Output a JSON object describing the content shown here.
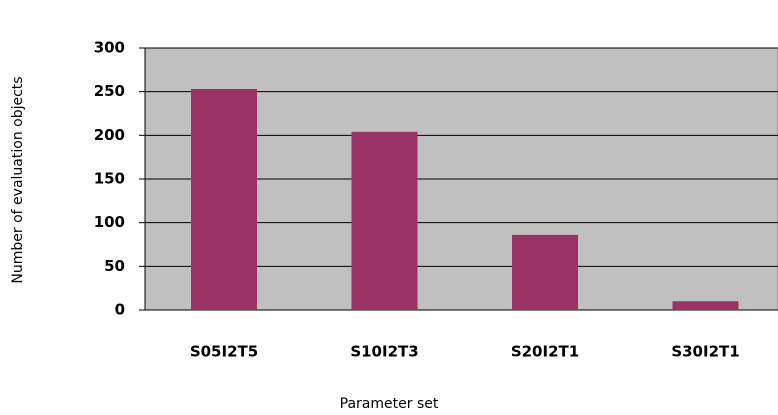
{
  "chart_data": {
    "type": "bar",
    "categories": [
      "S05I2T5",
      "S10I2T3",
      "S20I2T1",
      "S30I2T1"
    ],
    "values": [
      253,
      204,
      86,
      10
    ],
    "color": "#993366",
    "xlabel": "Parameter set",
    "ylabel": "Number of evaluation objects",
    "ylim": [
      0,
      300
    ],
    "yticks": [
      0,
      50,
      100,
      150,
      200,
      250,
      300
    ],
    "grid": true
  }
}
